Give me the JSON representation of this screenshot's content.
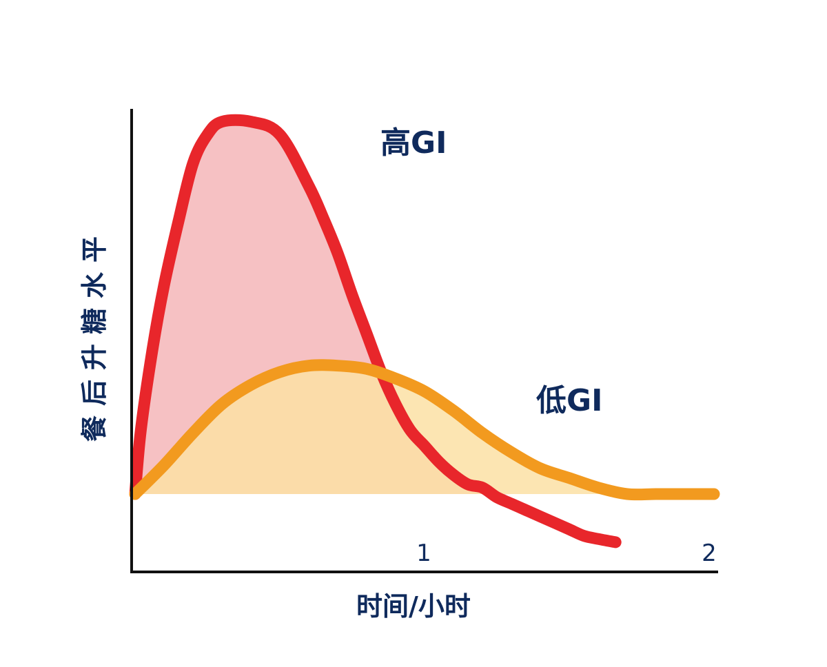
{
  "chart_data": {
    "type": "area",
    "xlabel": "时间/小时",
    "ylabel": "餐后升糖水平",
    "x_ticks": [
      "1",
      "2"
    ],
    "x_range": [
      0,
      2
    ],
    "y_range": [
      -0.15,
      1.2
    ],
    "baseline": 0,
    "grid": false,
    "legend": "none",
    "series": [
      {
        "name": "高GI",
        "color": "#e8262b",
        "fill": "#f6c1c3",
        "x": [
          0,
          0.02,
          0.06,
          0.1,
          0.15,
          0.2,
          0.25,
          0.3,
          0.4,
          0.5,
          0.6,
          0.65,
          0.7,
          0.75,
          0.8,
          0.85,
          0.9,
          0.95,
          1.0,
          1.05,
          1.1,
          1.15,
          1.2,
          1.25,
          1.3,
          1.35,
          1.4,
          1.45,
          1.5,
          1.55,
          1.6,
          1.66
        ],
        "y": [
          0,
          0.2,
          0.45,
          0.65,
          0.85,
          1.03,
          1.12,
          1.16,
          1.16,
          1.12,
          0.96,
          0.86,
          0.75,
          0.62,
          0.5,
          0.38,
          0.28,
          0.2,
          0.15,
          0.1,
          0.06,
          0.03,
          0.02,
          -0.01,
          -0.03,
          -0.05,
          -0.07,
          -0.09,
          -0.11,
          -0.13,
          -0.14,
          -0.15
        ]
      },
      {
        "name": "低GI",
        "color": "#f29a1f",
        "fill": "#fbe1a4",
        "x": [
          0,
          0.1,
          0.2,
          0.3,
          0.4,
          0.5,
          0.6,
          0.7,
          0.8,
          0.9,
          1.0,
          1.1,
          1.2,
          1.3,
          1.4,
          1.5,
          1.6,
          1.7,
          1.8,
          1.9,
          2.0
        ],
        "y": [
          0,
          0.09,
          0.19,
          0.28,
          0.34,
          0.38,
          0.4,
          0.4,
          0.39,
          0.36,
          0.32,
          0.26,
          0.19,
          0.13,
          0.08,
          0.05,
          0.02,
          0.0,
          0.0,
          0.0,
          0.0
        ]
      }
    ]
  }
}
